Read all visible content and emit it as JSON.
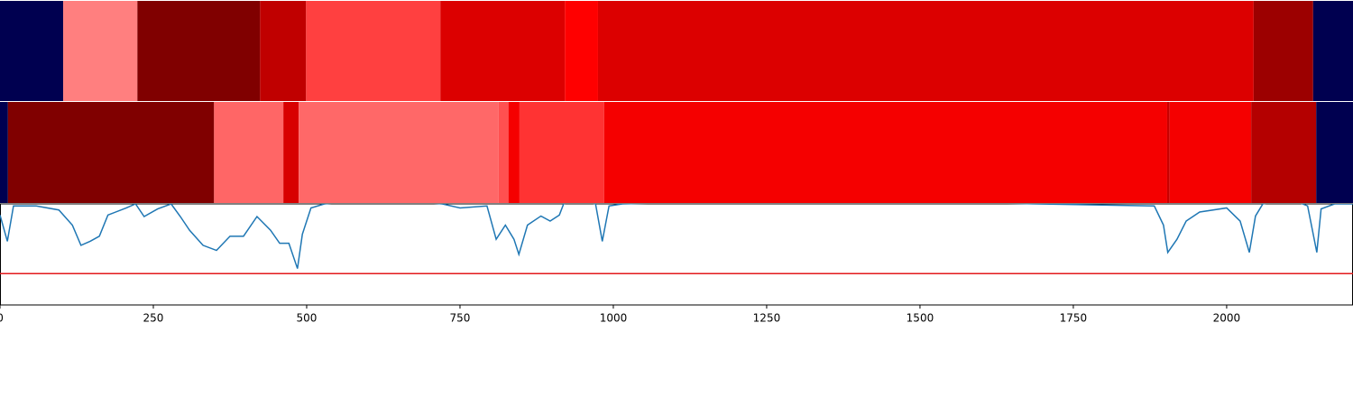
{
  "chart_data": {
    "type": "strips-and-line",
    "xlim": [
      0,
      2206
    ],
    "xticks": [
      0,
      250,
      500,
      750,
      1000,
      1250,
      1500,
      1750,
      2000
    ],
    "strips": [
      {
        "segments": [
          {
            "start": 0,
            "end": 103,
            "color": "#000050"
          },
          {
            "start": 103,
            "end": 224,
            "color": "#ff7f7f"
          },
          {
            "start": 224,
            "end": 424,
            "color": "#800000"
          },
          {
            "start": 424,
            "end": 499,
            "color": "#c00000"
          },
          {
            "start": 499,
            "end": 718,
            "color": "#ff4040"
          },
          {
            "start": 718,
            "end": 921,
            "color": "#dc0000"
          },
          {
            "start": 921,
            "end": 975,
            "color": "#ff0000"
          },
          {
            "start": 975,
            "end": 2044,
            "color": "#dc0000"
          },
          {
            "start": 2044,
            "end": 2141,
            "color": "#9c0000"
          },
          {
            "start": 2141,
            "end": 2206,
            "color": "#000050"
          }
        ]
      },
      {
        "segments": [
          {
            "start": 0,
            "end": 13,
            "color": "#000050"
          },
          {
            "start": 13,
            "end": 349,
            "color": "#800000"
          },
          {
            "start": 349,
            "end": 462,
            "color": "#ff6666"
          },
          {
            "start": 462,
            "end": 487,
            "color": "#d80000"
          },
          {
            "start": 487,
            "end": 813,
            "color": "#ff6868"
          },
          {
            "start": 813,
            "end": 829,
            "color": "#ff5050"
          },
          {
            "start": 829,
            "end": 847,
            "color": "#f50000"
          },
          {
            "start": 847,
            "end": 985,
            "color": "#ff3333"
          },
          {
            "start": 985,
            "end": 1903,
            "color": "#f50000"
          },
          {
            "start": 1903,
            "end": 1907,
            "color": "#c80000"
          },
          {
            "start": 1907,
            "end": 2040,
            "color": "#f50000"
          },
          {
            "start": 2040,
            "end": 2146,
            "color": "#b40000"
          },
          {
            "start": 2146,
            "end": 2206,
            "color": "#000050"
          }
        ]
      }
    ],
    "ylim": [
      0,
      1
    ],
    "threshold": {
      "value": 0.31,
      "color": "#e31a1c"
    },
    "series": [
      {
        "color": "#1f77b4",
        "x": [
          0,
          12,
          22,
          59,
          96,
          118,
          132,
          147,
          162,
          176,
          206,
          221,
          235,
          257,
          279,
          294,
          309,
          331,
          353,
          375,
          397,
          419,
          441,
          456,
          471,
          485,
          493,
          507,
          529,
          618,
          721,
          750,
          794,
          809,
          824,
          838,
          846,
          860,
          882,
          897,
          912,
          919,
          941,
          971,
          982,
          993,
          1015,
          1324,
          1691,
          1882,
          1897,
          1904,
          1919,
          1934,
          1956,
          2000,
          2022,
          2037,
          2047,
          2059,
          2103,
          2132,
          2147,
          2154,
          2176,
          2206
        ],
        "values": [
          0.89,
          0.63,
          0.98,
          0.98,
          0.94,
          0.79,
          0.59,
          0.63,
          0.68,
          0.89,
          0.96,
          1.0,
          0.875,
          0.95,
          1.0,
          0.875,
          0.74,
          0.59,
          0.54,
          0.68,
          0.68,
          0.875,
          0.74,
          0.61,
          0.61,
          0.36,
          0.7,
          0.96,
          1.0,
          1.05,
          1.0,
          0.96,
          0.98,
          0.65,
          0.79,
          0.65,
          0.5,
          0.79,
          0.88,
          0.83,
          0.89,
          1.0,
          1.05,
          1.0,
          0.63,
          0.98,
          1.0,
          1.05,
          1.0,
          0.98,
          0.79,
          0.52,
          0.65,
          0.83,
          0.92,
          0.96,
          0.83,
          0.52,
          0.88,
          1.0,
          1.05,
          0.98,
          0.52,
          0.95,
          1.0,
          1.0
        ]
      }
    ]
  }
}
